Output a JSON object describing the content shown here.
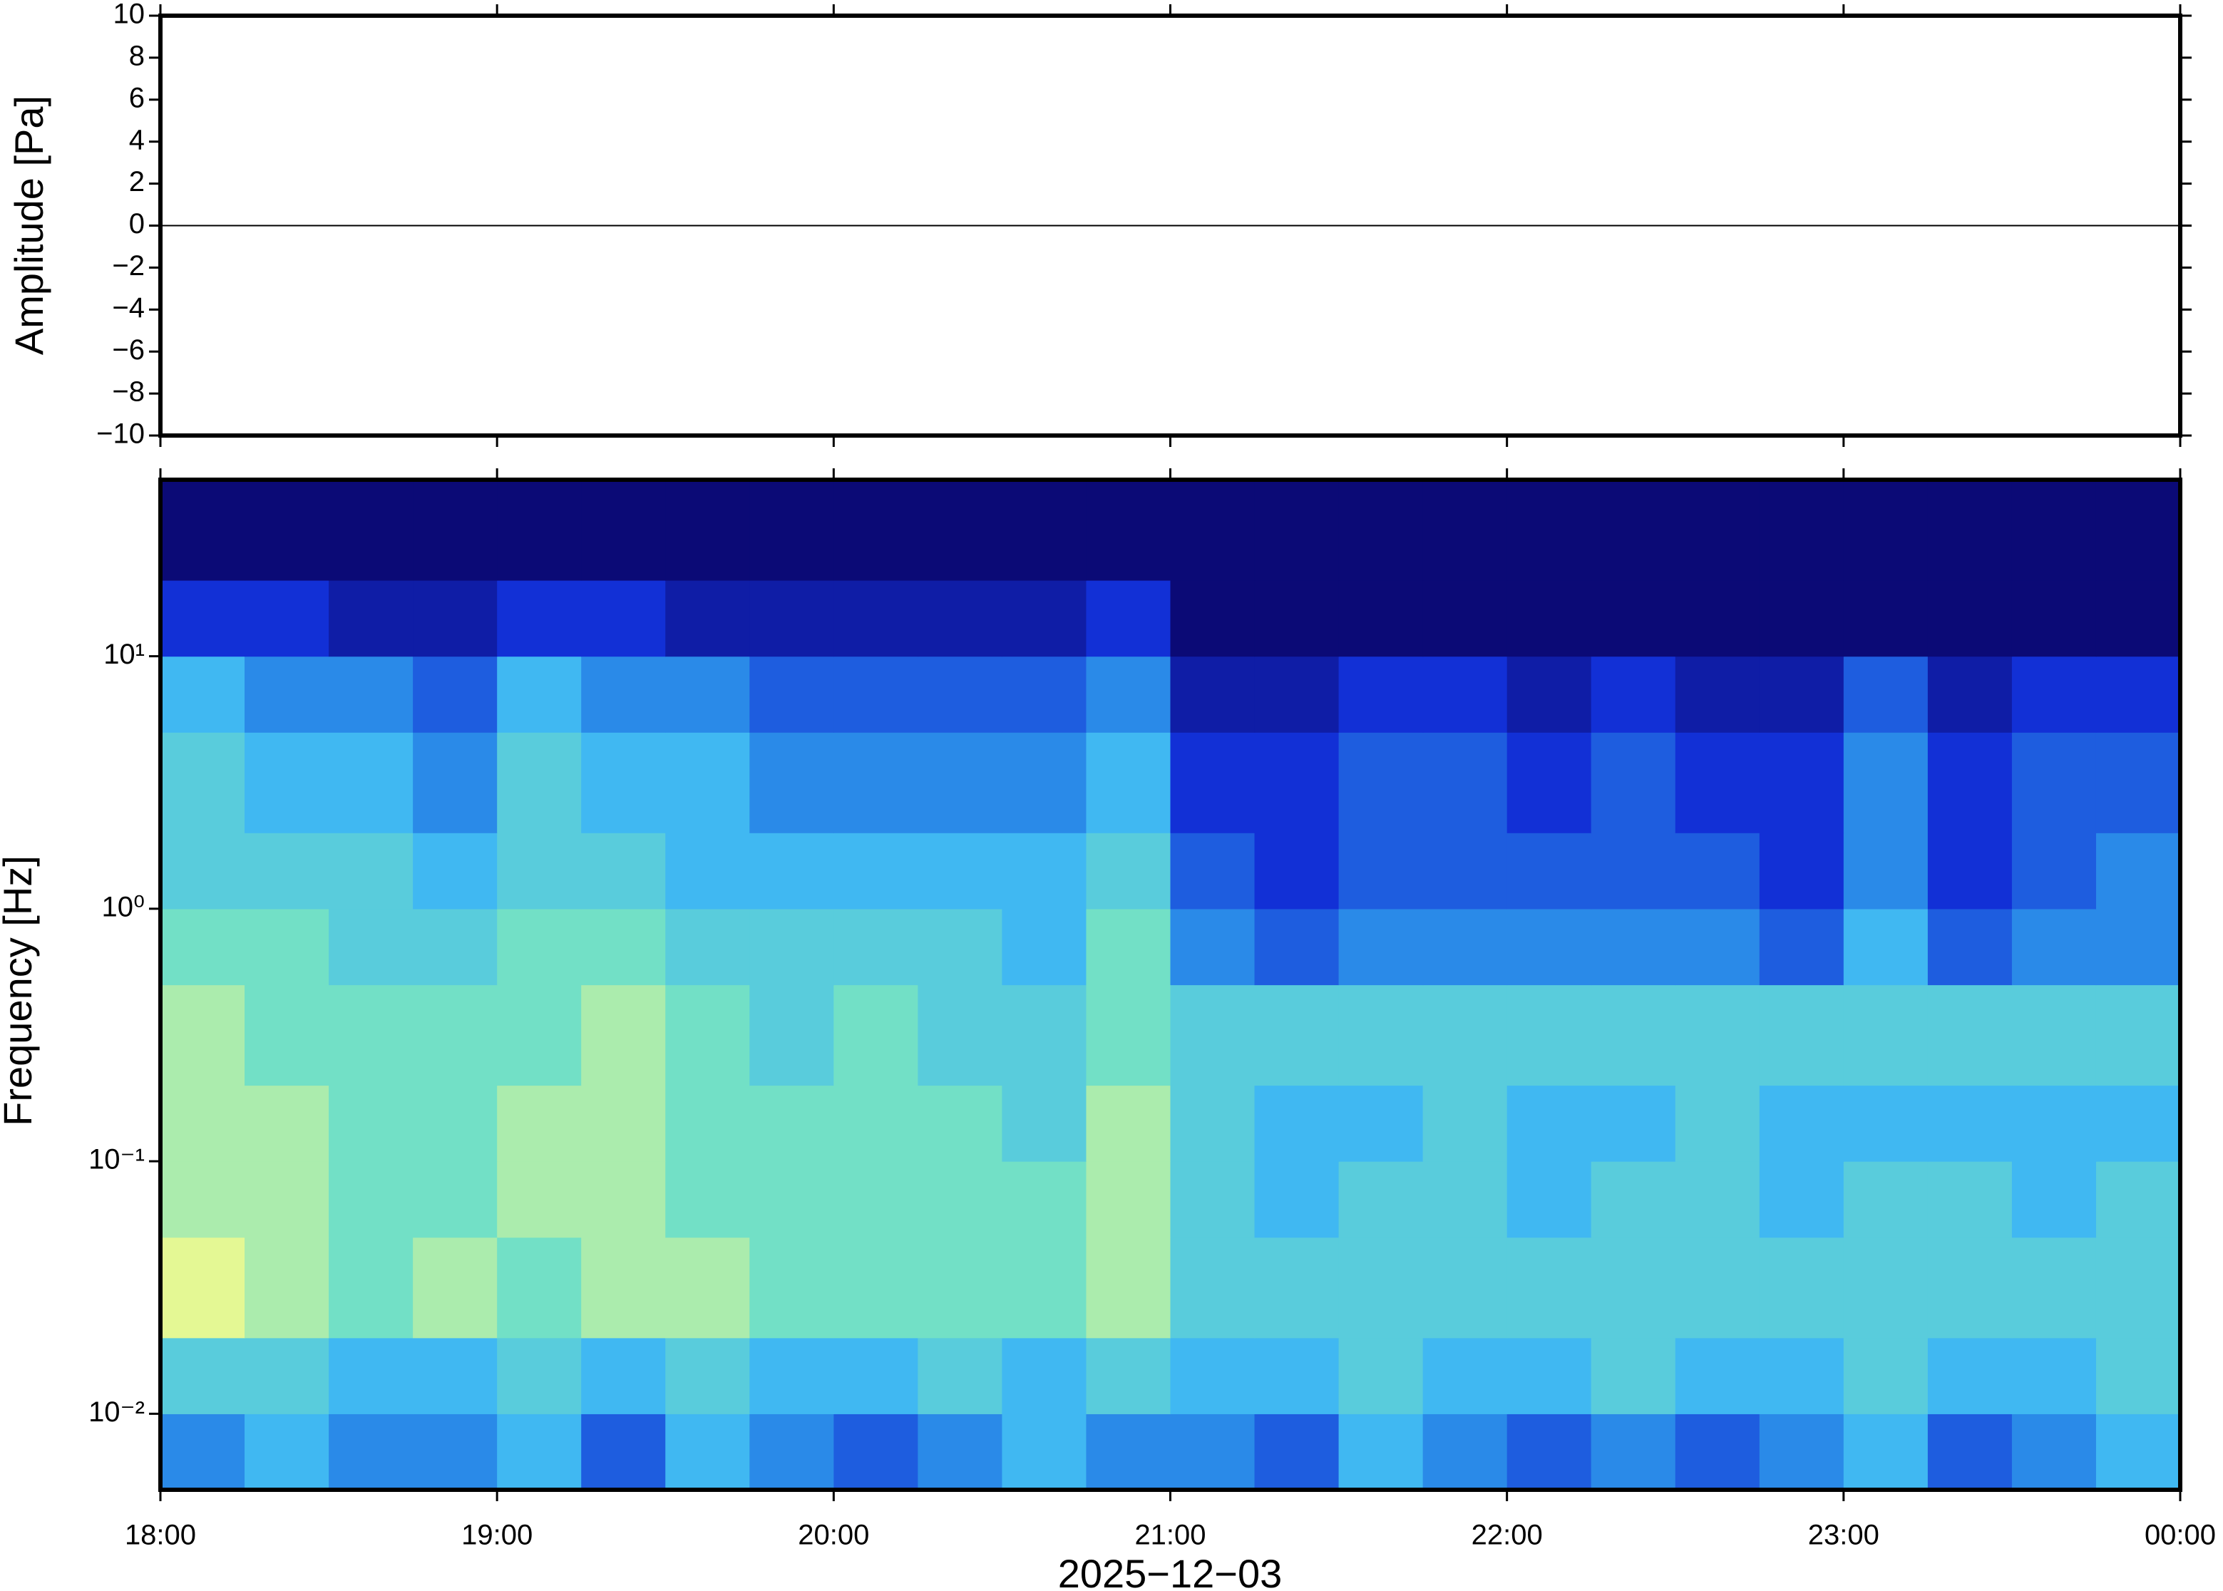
{
  "chart_data": [
    {
      "type": "line",
      "ylabel": "Amplitude [Pa]",
      "xlim": [
        18,
        24
      ],
      "ylim": [
        -10,
        10
      ],
      "yticks": [
        {
          "value": -10,
          "label": "−10"
        },
        {
          "value": -8,
          "label": "−8"
        },
        {
          "value": -6,
          "label": "−6"
        },
        {
          "value": -4,
          "label": "−4"
        },
        {
          "value": -2,
          "label": "−2"
        },
        0,
        2,
        4,
        6,
        8,
        10
      ],
      "series": [
        {
          "color": "#000000",
          "x": [
            18,
            18.5,
            19,
            19.5,
            20,
            20.5,
            21,
            21.5,
            22,
            22.5,
            23,
            23.5,
            24
          ],
          "values": [
            0,
            0,
            0,
            0,
            0,
            0,
            0,
            0,
            0,
            0,
            0,
            0,
            0
          ]
        }
      ]
    },
    {
      "type": "heatmap",
      "ylabel": "Frequency [Hz]",
      "xlabel": "2025−12−03",
      "log_y": true,
      "xlim": [
        18,
        24
      ],
      "ylim": [
        0.005,
        50
      ],
      "xticks": [
        {
          "value": 18,
          "label": "18:00"
        },
        {
          "value": 19,
          "label": "19:00"
        },
        {
          "value": 20,
          "label": "20:00"
        },
        {
          "value": 21,
          "label": "21:00"
        },
        {
          "value": 22,
          "label": "22:00"
        },
        {
          "value": 23,
          "label": "23:00"
        },
        {
          "value": 24,
          "label": "00:00"
        }
      ],
      "yticks": [
        {
          "value": 0.01,
          "label": "10⁻²"
        },
        {
          "value": 0.1,
          "label": "10⁻¹"
        },
        {
          "value": 1,
          "label": "10⁰"
        },
        {
          "value": 10,
          "label": "10¹"
        }
      ],
      "xbins": [
        18,
        18.25,
        18.5,
        18.75,
        19,
        19.25,
        19.5,
        19.75,
        20,
        20.25,
        20.5,
        20.75,
        21,
        21.25,
        21.5,
        21.75,
        22,
        22.25,
        22.5,
        22.75,
        23,
        23.25,
        23.5,
        23.75,
        24
      ],
      "ybins": [
        0.005,
        0.01,
        0.02,
        0.05,
        0.1,
        0.2,
        0.5,
        1,
        2,
        5,
        10,
        20,
        50
      ],
      "zlim": [
        0,
        10
      ],
      "colorscale": [
        [
          0,
          "#0b0a76"
        ],
        [
          2,
          "#1230d6"
        ],
        [
          4,
          "#2a8ae8"
        ],
        [
          5,
          "#40b8f2"
        ],
        [
          7,
          "#72e0c6"
        ],
        [
          9,
          "#e4f894"
        ],
        [
          10,
          "#f4f070"
        ]
      ],
      "z": [
        [
          4,
          5,
          4,
          4,
          5,
          3,
          5,
          4,
          3,
          4,
          5,
          4,
          4,
          3,
          5,
          4,
          3,
          4,
          3,
          4,
          5,
          3,
          4,
          5
        ],
        [
          6,
          6,
          5,
          5,
          6,
          5,
          6,
          5,
          5,
          6,
          5,
          6,
          5,
          5,
          6,
          5,
          5,
          6,
          5,
          5,
          6,
          5,
          5,
          6
        ],
        [
          9,
          8,
          7,
          8,
          7,
          8,
          8,
          7,
          7,
          7,
          7,
          8,
          6,
          6,
          6,
          6,
          6,
          6,
          6,
          6,
          6,
          6,
          6,
          6
        ],
        [
          8,
          8,
          7,
          7,
          8,
          8,
          7,
          7,
          7,
          7,
          7,
          8,
          6,
          5,
          6,
          6,
          5,
          6,
          6,
          5,
          6,
          6,
          5,
          6
        ],
        [
          8,
          8,
          7,
          7,
          8,
          8,
          7,
          7,
          7,
          7,
          6,
          8,
          6,
          5,
          5,
          6,
          5,
          5,
          6,
          5,
          5,
          5,
          5,
          5
        ],
        [
          8,
          7,
          7,
          7,
          7,
          8,
          7,
          6,
          7,
          6,
          6,
          7,
          6,
          6,
          6,
          6,
          6,
          6,
          6,
          6,
          6,
          6,
          6,
          6
        ],
        [
          7,
          7,
          6,
          6,
          7,
          7,
          6,
          6,
          6,
          6,
          5,
          7,
          4,
          3,
          4,
          4,
          4,
          4,
          4,
          3,
          5,
          3,
          4,
          4
        ],
        [
          6,
          6,
          6,
          5,
          6,
          6,
          5,
          5,
          5,
          5,
          5,
          6,
          3,
          2,
          3,
          3,
          3,
          3,
          3,
          2,
          4,
          2,
          3,
          4
        ],
        [
          6,
          5,
          5,
          4,
          6,
          5,
          5,
          4,
          4,
          4,
          4,
          5,
          2,
          2,
          3,
          3,
          2,
          3,
          2,
          2,
          4,
          2,
          3,
          3
        ],
        [
          5,
          4,
          4,
          3,
          5,
          4,
          4,
          3,
          3,
          3,
          3,
          4,
          1,
          1,
          2,
          2,
          1,
          2,
          1,
          1,
          3,
          1,
          2,
          2
        ],
        [
          2,
          2,
          1,
          1,
          2,
          2,
          1,
          1,
          1,
          1,
          1,
          2,
          0,
          0,
          0,
          0,
          0,
          0,
          0,
          0,
          0,
          0,
          0,
          0
        ],
        [
          0,
          0,
          0,
          0,
          0,
          0,
          0,
          0,
          0,
          0,
          0,
          0,
          0,
          0,
          0,
          0,
          0,
          0,
          0,
          0,
          0,
          0,
          0,
          0
        ]
      ]
    }
  ]
}
